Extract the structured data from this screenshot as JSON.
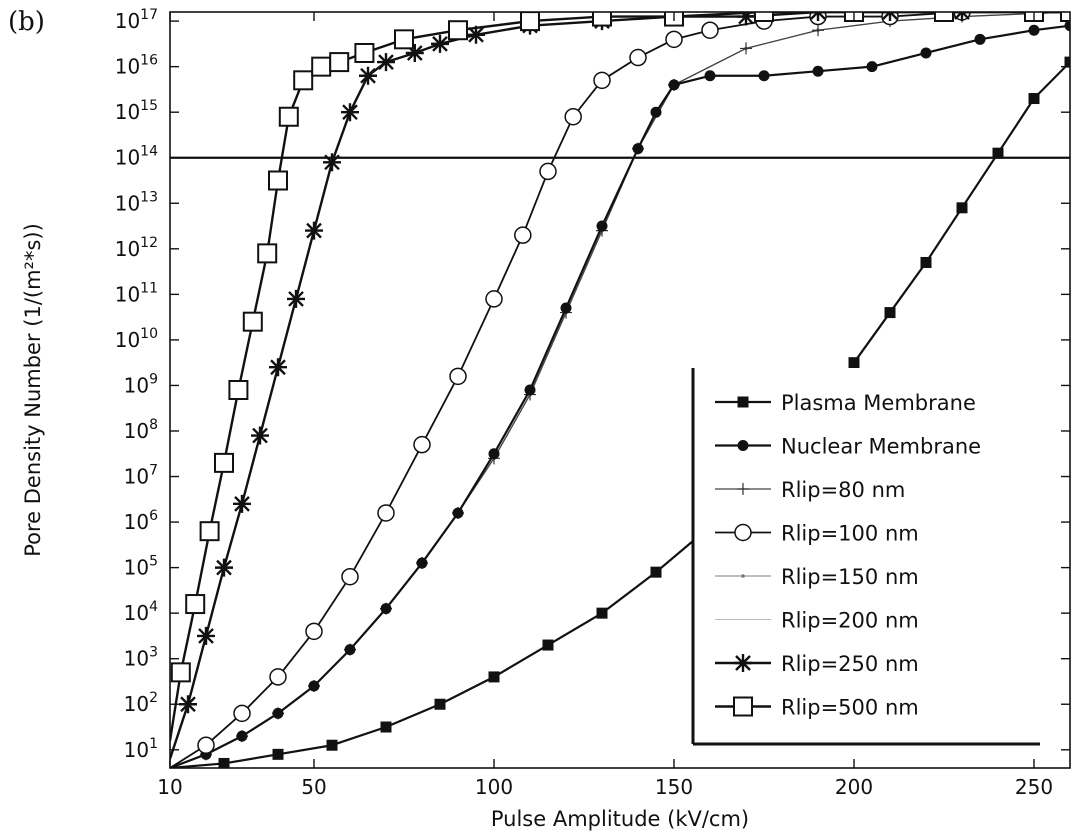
{
  "chart_data": {
    "type": "line",
    "panel_label": "(b)",
    "title": "",
    "xlabel": "Pulse Amplitude (kV/cm)",
    "ylabel": "Pore Density Number (1/(m²*s))",
    "x_scale": "linear",
    "y_scale": "log",
    "xlim": [
      10,
      260
    ],
    "ylim_exponent": [
      0.6,
      17.2
    ],
    "x_ticks": [
      10,
      50,
      100,
      150,
      200,
      250
    ],
    "y_tick_exponents": [
      1,
      2,
      3,
      4,
      5,
      6,
      7,
      8,
      9,
      10,
      11,
      12,
      13,
      14,
      15,
      16,
      17
    ],
    "y_tick_base": "10",
    "reference_line_y": "1e14",
    "legend_position": "bottom-right",
    "grid": false,
    "series": [
      {
        "name": "Plasma Membrane",
        "marker": "filled-square",
        "x": [
          10,
          25,
          40,
          55,
          70,
          85,
          100,
          115,
          130,
          145,
          160,
          175,
          190,
          200,
          210,
          220,
          230,
          240,
          250,
          260
        ],
        "y_exp": [
          0.6,
          0.7,
          0.9,
          1.1,
          1.5,
          2.0,
          2.6,
          3.3,
          4.0,
          4.9,
          5.9,
          7.1,
          8.4,
          9.5,
          10.6,
          11.7,
          12.9,
          14.1,
          15.3,
          16.1
        ]
      },
      {
        "name": "Nuclear Membrane",
        "marker": "filled-circle",
        "x": [
          10,
          20,
          30,
          40,
          50,
          60,
          70,
          80,
          90,
          100,
          110,
          120,
          130,
          140,
          145,
          150,
          160,
          175,
          190,
          205,
          220,
          235,
          250,
          260
        ],
        "y_exp": [
          0.6,
          0.9,
          1.3,
          1.8,
          2.4,
          3.2,
          4.1,
          5.1,
          6.2,
          7.5,
          8.9,
          10.7,
          12.5,
          14.2,
          15.0,
          15.6,
          15.8,
          15.8,
          15.9,
          16.0,
          16.3,
          16.6,
          16.8,
          16.9
        ]
      },
      {
        "name": "Rlip=80 nm",
        "marker": "plus",
        "x": [
          10,
          20,
          30,
          40,
          50,
          60,
          70,
          80,
          90,
          100,
          110,
          120,
          130,
          140,
          150,
          170,
          190,
          210,
          230,
          260
        ],
        "y_exp": [
          0.6,
          0.9,
          1.3,
          1.8,
          2.4,
          3.2,
          4.1,
          5.1,
          6.2,
          7.4,
          8.8,
          10.6,
          12.4,
          14.2,
          15.6,
          16.4,
          16.8,
          17.0,
          17.1,
          17.2
        ]
      },
      {
        "name": "Rlip=100 nm",
        "marker": "open-circle",
        "x": [
          10,
          20,
          30,
          40,
          50,
          60,
          70,
          80,
          90,
          100,
          108,
          115,
          122,
          130,
          140,
          150,
          160,
          175,
          190,
          210,
          230,
          260
        ],
        "y_exp": [
          0.6,
          1.1,
          1.8,
          2.6,
          3.6,
          4.8,
          6.2,
          7.7,
          9.2,
          10.9,
          12.3,
          13.7,
          14.9,
          15.7,
          16.2,
          16.6,
          16.8,
          17.0,
          17.1,
          17.1,
          17.2,
          17.2
        ]
      },
      {
        "name": "Rlip=150 nm",
        "marker": "dot",
        "x": [
          10,
          20,
          30,
          40,
          50,
          60,
          70,
          80,
          90,
          100,
          110,
          120,
          130,
          140,
          150,
          170,
          190,
          210,
          230,
          260
        ],
        "y_exp": [
          0.6,
          0.9,
          1.3,
          1.8,
          2.4,
          3.2,
          4.1,
          5.1,
          6.2,
          7.4,
          8.8,
          10.6,
          12.4,
          14.2,
          15.6,
          16.4,
          16.8,
          17.0,
          17.1,
          17.2
        ]
      },
      {
        "name": "Rlip=200 nm",
        "marker": "none",
        "x": [
          10,
          20,
          30,
          40,
          50,
          60,
          70,
          80,
          90,
          100,
          110,
          120,
          130,
          140,
          150,
          170,
          190,
          210,
          230,
          260
        ],
        "y_exp": [
          0.6,
          0.9,
          1.3,
          1.8,
          2.4,
          3.2,
          4.1,
          5.1,
          6.2,
          7.4,
          8.8,
          10.6,
          12.4,
          14.2,
          15.6,
          16.4,
          16.8,
          17.0,
          17.1,
          17.2
        ]
      },
      {
        "name": "Rlip=250 nm",
        "marker": "asterisk",
        "x": [
          10,
          15,
          20,
          25,
          30,
          35,
          40,
          45,
          50,
          55,
          60,
          65,
          70,
          78,
          85,
          95,
          110,
          130,
          150,
          170,
          190,
          210,
          230,
          260
        ],
        "y_exp": [
          0.8,
          2.0,
          3.5,
          5.0,
          6.4,
          7.9,
          9.4,
          10.9,
          12.4,
          13.9,
          15.0,
          15.8,
          16.1,
          16.3,
          16.5,
          16.7,
          16.9,
          17.0,
          17.1,
          17.1,
          17.2,
          17.2,
          17.2,
          17.2
        ]
      },
      {
        "name": "Rlip=500 nm",
        "marker": "open-square",
        "x": [
          10,
          13,
          17,
          21,
          25,
          29,
          33,
          37,
          40,
          43,
          47,
          52,
          57,
          64,
          75,
          90,
          110,
          130,
          150,
          175,
          200,
          225,
          250,
          260
        ],
        "y_exp": [
          1.2,
          2.7,
          4.2,
          5.8,
          7.3,
          8.9,
          10.4,
          11.9,
          13.5,
          14.9,
          15.7,
          16.0,
          16.1,
          16.3,
          16.6,
          16.8,
          17.0,
          17.1,
          17.1,
          17.2,
          17.2,
          17.2,
          17.2,
          17.2
        ]
      }
    ]
  }
}
